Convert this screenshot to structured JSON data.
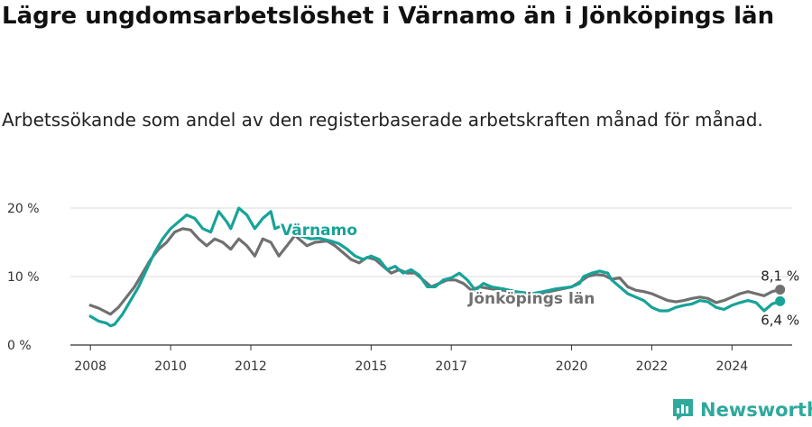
{
  "title": "Lägre ungdomsarbetslöshet i Värnamo än i Jönköpings län",
  "subtitle": "Arbetssökande som andel av den registerbaserade arbetskraften månad för månad.",
  "brand": "Newsworthy",
  "colors": {
    "varnamo": "#17a398",
    "jonkoping": "#707070",
    "grid": "#d9d9d9",
    "axis": "#333333"
  },
  "chart_data": {
    "type": "line",
    "ylim": [
      0,
      20
    ],
    "y_ticks": [
      0,
      10,
      20
    ],
    "y_tick_labels": [
      "0 %",
      "10 %",
      "20 %"
    ],
    "xlim": [
      2007.5,
      2025.5
    ],
    "x_ticks": [
      2008,
      2010,
      2012,
      2015,
      2017,
      2020,
      2022,
      2024
    ],
    "x_tick_labels": [
      "2008",
      "2010",
      "2012",
      "2015",
      "2017",
      "2020",
      "2022",
      "2024"
    ],
    "grid": true,
    "series": [
      {
        "name": "Värnamo",
        "color": "#17a398",
        "end_label": "6,4 %",
        "points": [
          [
            2008.0,
            4.2
          ],
          [
            2008.2,
            3.5
          ],
          [
            2008.4,
            3.2
          ],
          [
            2008.5,
            2.8
          ],
          [
            2008.6,
            3.0
          ],
          [
            2008.8,
            4.5
          ],
          [
            2009.0,
            6.5
          ],
          [
            2009.2,
            8.5
          ],
          [
            2009.4,
            11.0
          ],
          [
            2009.6,
            13.5
          ],
          [
            2009.8,
            15.5
          ],
          [
            2010.0,
            17.0
          ],
          [
            2010.2,
            18.0
          ],
          [
            2010.4,
            19.0
          ],
          [
            2010.6,
            18.5
          ],
          [
            2010.8,
            17.0
          ],
          [
            2011.0,
            16.5
          ],
          [
            2011.2,
            19.5
          ],
          [
            2011.4,
            18.0
          ],
          [
            2011.5,
            17.0
          ],
          [
            2011.7,
            20.0
          ],
          [
            2011.9,
            19.0
          ],
          [
            2012.1,
            17.0
          ],
          [
            2012.3,
            18.5
          ],
          [
            2012.5,
            19.5
          ],
          [
            2012.6,
            17.0
          ],
          [
            2012.8,
            17.5
          ],
          [
            2013.0,
            16.5
          ],
          [
            2013.2,
            16.0
          ],
          [
            2013.5,
            15.5
          ],
          [
            2013.7,
            15.6
          ],
          [
            2014.0,
            15.2
          ],
          [
            2014.2,
            14.8
          ],
          [
            2014.4,
            14.0
          ],
          [
            2014.6,
            13.0
          ],
          [
            2014.8,
            12.5
          ],
          [
            2015.0,
            13.0
          ],
          [
            2015.2,
            12.5
          ],
          [
            2015.4,
            11.0
          ],
          [
            2015.6,
            11.5
          ],
          [
            2015.8,
            10.5
          ],
          [
            2016.0,
            11.0
          ],
          [
            2016.2,
            10.2
          ],
          [
            2016.4,
            8.5
          ],
          [
            2016.6,
            8.5
          ],
          [
            2016.8,
            9.5
          ],
          [
            2017.0,
            9.8
          ],
          [
            2017.2,
            10.5
          ],
          [
            2017.4,
            9.5
          ],
          [
            2017.6,
            8.0
          ],
          [
            2017.8,
            9.0
          ],
          [
            2018.0,
            8.5
          ],
          [
            2018.3,
            8.2
          ],
          [
            2018.6,
            7.8
          ],
          [
            2019.0,
            7.5
          ],
          [
            2019.3,
            7.8
          ],
          [
            2019.6,
            8.2
          ],
          [
            2020.0,
            8.5
          ],
          [
            2020.2,
            9.0
          ],
          [
            2020.3,
            10.0
          ],
          [
            2020.5,
            10.5
          ],
          [
            2020.7,
            10.8
          ],
          [
            2020.9,
            10.5
          ],
          [
            2021.0,
            9.5
          ],
          [
            2021.2,
            8.5
          ],
          [
            2021.4,
            7.5
          ],
          [
            2021.6,
            7.0
          ],
          [
            2021.8,
            6.5
          ],
          [
            2022.0,
            5.5
          ],
          [
            2022.2,
            5.0
          ],
          [
            2022.4,
            5.0
          ],
          [
            2022.6,
            5.5
          ],
          [
            2022.8,
            5.8
          ],
          [
            2023.0,
            6.0
          ],
          [
            2023.2,
            6.5
          ],
          [
            2023.4,
            6.3
          ],
          [
            2023.6,
            5.5
          ],
          [
            2023.8,
            5.2
          ],
          [
            2024.0,
            5.8
          ],
          [
            2024.2,
            6.2
          ],
          [
            2024.4,
            6.5
          ],
          [
            2024.6,
            6.2
          ],
          [
            2024.8,
            5.0
          ],
          [
            2025.0,
            6.0
          ],
          [
            2025.2,
            6.4
          ]
        ]
      },
      {
        "name": "Jönköpings län",
        "color": "#707070",
        "end_label": "8,1 %",
        "points": [
          [
            2008.0,
            5.8
          ],
          [
            2008.2,
            5.4
          ],
          [
            2008.4,
            4.8
          ],
          [
            2008.5,
            4.5
          ],
          [
            2008.7,
            5.5
          ],
          [
            2008.9,
            7.0
          ],
          [
            2009.1,
            8.5
          ],
          [
            2009.3,
            10.5
          ],
          [
            2009.5,
            12.5
          ],
          [
            2009.7,
            14.0
          ],
          [
            2009.9,
            15.0
          ],
          [
            2010.1,
            16.5
          ],
          [
            2010.3,
            17.0
          ],
          [
            2010.5,
            16.8
          ],
          [
            2010.7,
            15.5
          ],
          [
            2010.9,
            14.5
          ],
          [
            2011.1,
            15.5
          ],
          [
            2011.3,
            15.0
          ],
          [
            2011.5,
            14.0
          ],
          [
            2011.7,
            15.5
          ],
          [
            2011.9,
            14.5
          ],
          [
            2012.1,
            13.0
          ],
          [
            2012.3,
            15.5
          ],
          [
            2012.5,
            15.0
          ],
          [
            2012.7,
            13.0
          ],
          [
            2012.9,
            14.5
          ],
          [
            2013.1,
            16.0
          ],
          [
            2013.4,
            14.5
          ],
          [
            2013.6,
            15.0
          ],
          [
            2013.9,
            15.2
          ],
          [
            2014.1,
            14.5
          ],
          [
            2014.3,
            13.5
          ],
          [
            2014.5,
            12.5
          ],
          [
            2014.7,
            12.0
          ],
          [
            2014.9,
            12.8
          ],
          [
            2015.1,
            12.5
          ],
          [
            2015.3,
            11.5
          ],
          [
            2015.5,
            10.5
          ],
          [
            2015.7,
            11.0
          ],
          [
            2015.9,
            10.5
          ],
          [
            2016.1,
            10.5
          ],
          [
            2016.3,
            9.5
          ],
          [
            2016.5,
            8.5
          ],
          [
            2016.7,
            9.0
          ],
          [
            2016.9,
            9.5
          ],
          [
            2017.1,
            9.5
          ],
          [
            2017.3,
            9.0
          ],
          [
            2017.5,
            8.0
          ],
          [
            2017.7,
            8.5
          ],
          [
            2018.0,
            8.2
          ],
          [
            2018.3,
            8.0
          ],
          [
            2018.6,
            7.6
          ],
          [
            2019.0,
            7.4
          ],
          [
            2019.3,
            7.6
          ],
          [
            2019.6,
            8.0
          ],
          [
            2020.0,
            8.5
          ],
          [
            2020.2,
            9.2
          ],
          [
            2020.4,
            10.0
          ],
          [
            2020.6,
            10.3
          ],
          [
            2020.8,
            10.2
          ],
          [
            2021.0,
            9.6
          ],
          [
            2021.2,
            9.8
          ],
          [
            2021.4,
            8.5
          ],
          [
            2021.6,
            8.0
          ],
          [
            2021.8,
            7.8
          ],
          [
            2022.0,
            7.5
          ],
          [
            2022.2,
            7.0
          ],
          [
            2022.4,
            6.5
          ],
          [
            2022.6,
            6.3
          ],
          [
            2022.8,
            6.5
          ],
          [
            2023.0,
            6.8
          ],
          [
            2023.2,
            7.0
          ],
          [
            2023.4,
            6.8
          ],
          [
            2023.6,
            6.2
          ],
          [
            2023.8,
            6.5
          ],
          [
            2024.0,
            7.0
          ],
          [
            2024.2,
            7.5
          ],
          [
            2024.4,
            7.8
          ],
          [
            2024.6,
            7.5
          ],
          [
            2024.8,
            7.2
          ],
          [
            2025.0,
            7.8
          ],
          [
            2025.2,
            8.1
          ]
        ]
      }
    ]
  }
}
